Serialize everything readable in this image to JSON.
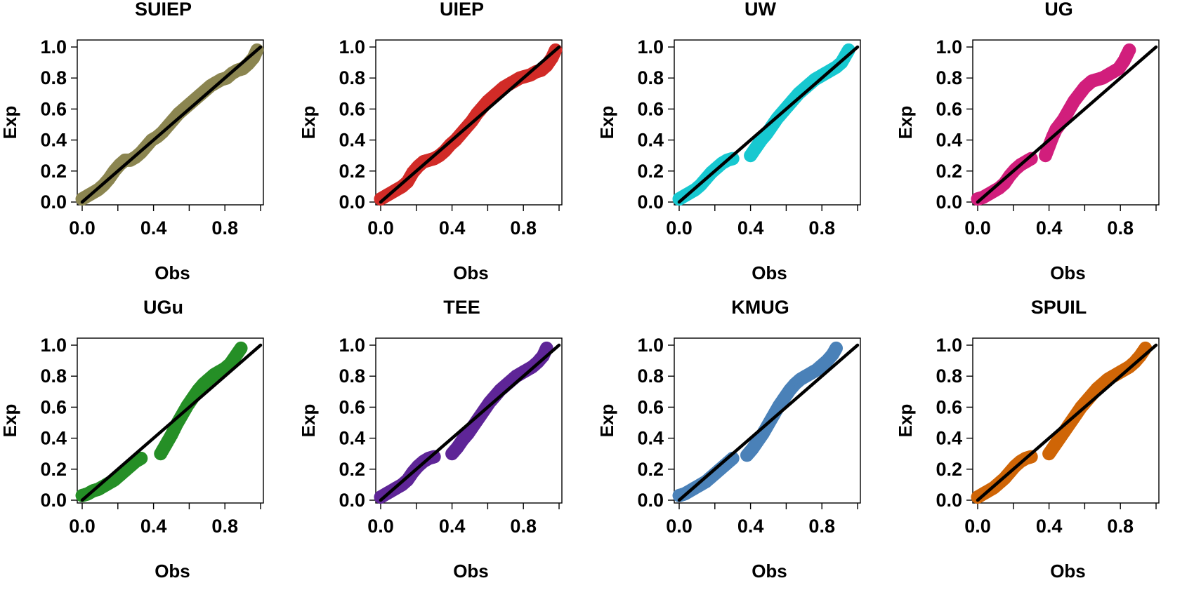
{
  "chart_data": [
    {
      "type": "scatter",
      "title": "SUIEP",
      "xlabel": "Obs",
      "ylabel": "Exp",
      "xlim": [
        0,
        1
      ],
      "ylim": [
        0,
        1
      ],
      "x_ticks": [
        "0.0",
        "0.4",
        "0.8"
      ],
      "y_ticks": [
        "0.0",
        "0.2",
        "0.4",
        "0.6",
        "0.8",
        "1.0"
      ],
      "point_color": "#8B8550",
      "reference_line": {
        "from": [
          0,
          0
        ],
        "to": [
          1,
          1
        ],
        "color": "#000000"
      },
      "x": [
        0.0,
        0.03,
        0.06,
        0.09,
        0.12,
        0.15,
        0.18,
        0.21,
        0.24,
        0.27,
        0.3,
        0.33,
        0.36,
        0.39,
        0.42,
        0.45,
        0.48,
        0.51,
        0.54,
        0.57,
        0.6,
        0.63,
        0.66,
        0.69,
        0.72,
        0.75,
        0.78,
        0.81,
        0.84,
        0.87,
        0.9,
        0.93,
        0.96,
        0.98
      ],
      "y": [
        0.02,
        0.04,
        0.06,
        0.08,
        0.11,
        0.15,
        0.2,
        0.24,
        0.27,
        0.27,
        0.29,
        0.32,
        0.36,
        0.4,
        0.42,
        0.45,
        0.49,
        0.53,
        0.57,
        0.6,
        0.63,
        0.66,
        0.69,
        0.72,
        0.75,
        0.77,
        0.79,
        0.8,
        0.83,
        0.85,
        0.86,
        0.89,
        0.93,
        0.98
      ]
    },
    {
      "type": "scatter",
      "title": "UIEP",
      "xlabel": "Obs",
      "ylabel": "Exp",
      "xlim": [
        0,
        1
      ],
      "ylim": [
        0,
        1
      ],
      "x_ticks": [
        "0.0",
        "0.4",
        "0.8"
      ],
      "y_ticks": [
        "0.0",
        "0.2",
        "0.4",
        "0.6",
        "0.8",
        "1.0"
      ],
      "point_color": "#D12B27",
      "reference_line": {
        "from": [
          0,
          0
        ],
        "to": [
          1,
          1
        ],
        "color": "#000000"
      },
      "x": [
        0.0,
        0.03,
        0.06,
        0.09,
        0.12,
        0.15,
        0.18,
        0.21,
        0.24,
        0.27,
        0.3,
        0.33,
        0.36,
        0.39,
        0.42,
        0.45,
        0.48,
        0.51,
        0.54,
        0.57,
        0.6,
        0.63,
        0.66,
        0.69,
        0.72,
        0.75,
        0.78,
        0.81,
        0.84,
        0.87,
        0.9,
        0.93,
        0.96,
        0.98
      ],
      "y": [
        0.02,
        0.04,
        0.06,
        0.08,
        0.1,
        0.13,
        0.19,
        0.23,
        0.26,
        0.27,
        0.28,
        0.3,
        0.33,
        0.37,
        0.4,
        0.44,
        0.48,
        0.52,
        0.57,
        0.61,
        0.65,
        0.68,
        0.71,
        0.74,
        0.76,
        0.78,
        0.8,
        0.81,
        0.82,
        0.84,
        0.85,
        0.88,
        0.93,
        0.98
      ]
    },
    {
      "type": "scatter",
      "title": "UW",
      "xlabel": "Obs",
      "ylabel": "Exp",
      "xlim": [
        0,
        1
      ],
      "ylim": [
        0,
        1
      ],
      "x_ticks": [
        "0.0",
        "0.4",
        "0.8"
      ],
      "y_ticks": [
        "0.0",
        "0.2",
        "0.4",
        "0.6",
        "0.8",
        "1.0"
      ],
      "point_color": "#17C8D0",
      "reference_line": {
        "from": [
          0,
          0
        ],
        "to": [
          1,
          1
        ],
        "color": "#000000"
      },
      "x": [
        0.0,
        0.03,
        0.06,
        0.09,
        0.12,
        0.15,
        0.18,
        0.21,
        0.24,
        0.27,
        0.3,
        0.4,
        0.43,
        0.46,
        0.49,
        0.52,
        0.55,
        0.58,
        0.61,
        0.64,
        0.67,
        0.7,
        0.73,
        0.76,
        0.79,
        0.82,
        0.85,
        0.88,
        0.91,
        0.93,
        0.95
      ],
      "y": [
        0.02,
        0.04,
        0.06,
        0.08,
        0.11,
        0.15,
        0.19,
        0.22,
        0.25,
        0.27,
        0.28,
        0.3,
        0.35,
        0.4,
        0.44,
        0.49,
        0.54,
        0.58,
        0.62,
        0.66,
        0.7,
        0.73,
        0.76,
        0.79,
        0.81,
        0.83,
        0.85,
        0.87,
        0.9,
        0.94,
        0.98
      ]
    },
    {
      "type": "scatter",
      "title": "UG",
      "xlabel": "Obs",
      "ylabel": "Exp",
      "xlim": [
        0,
        1
      ],
      "ylim": [
        0,
        1
      ],
      "x_ticks": [
        "0.0",
        "0.4",
        "0.8"
      ],
      "y_ticks": [
        "0.0",
        "0.2",
        "0.4",
        "0.6",
        "0.8",
        "1.0"
      ],
      "point_color": "#D11E7C",
      "reference_line": {
        "from": [
          0,
          0
        ],
        "to": [
          1,
          1
        ],
        "color": "#000000"
      },
      "x": [
        0.0,
        0.03,
        0.06,
        0.09,
        0.12,
        0.15,
        0.18,
        0.21,
        0.24,
        0.27,
        0.3,
        0.38,
        0.4,
        0.42,
        0.44,
        0.46,
        0.48,
        0.5,
        0.52,
        0.54,
        0.56,
        0.58,
        0.6,
        0.62,
        0.64,
        0.67,
        0.7,
        0.73,
        0.76,
        0.79,
        0.82,
        0.85
      ],
      "y": [
        0.02,
        0.03,
        0.05,
        0.07,
        0.09,
        0.12,
        0.17,
        0.21,
        0.24,
        0.26,
        0.28,
        0.3,
        0.36,
        0.42,
        0.47,
        0.5,
        0.53,
        0.57,
        0.61,
        0.65,
        0.68,
        0.71,
        0.74,
        0.76,
        0.78,
        0.79,
        0.8,
        0.82,
        0.84,
        0.86,
        0.91,
        0.98
      ]
    },
    {
      "type": "scatter",
      "title": "UGu",
      "xlabel": "Obs",
      "ylabel": "Exp",
      "xlim": [
        0,
        1
      ],
      "ylim": [
        0,
        1
      ],
      "x_ticks": [
        "0.0",
        "0.4",
        "0.8"
      ],
      "y_ticks": [
        "0.0",
        "0.2",
        "0.4",
        "0.6",
        "0.8",
        "1.0"
      ],
      "point_color": "#258F26",
      "reference_line": {
        "from": [
          0,
          0
        ],
        "to": [
          1,
          1
        ],
        "color": "#000000"
      },
      "x": [
        0.0,
        0.03,
        0.06,
        0.09,
        0.12,
        0.15,
        0.18,
        0.21,
        0.24,
        0.27,
        0.3,
        0.33,
        0.44,
        0.47,
        0.5,
        0.53,
        0.56,
        0.59,
        0.62,
        0.65,
        0.68,
        0.71,
        0.74,
        0.77,
        0.8,
        0.83,
        0.86,
        0.89
      ],
      "y": [
        0.03,
        0.04,
        0.06,
        0.07,
        0.09,
        0.11,
        0.13,
        0.16,
        0.19,
        0.22,
        0.25,
        0.27,
        0.3,
        0.36,
        0.42,
        0.49,
        0.55,
        0.61,
        0.66,
        0.71,
        0.75,
        0.78,
        0.81,
        0.83,
        0.85,
        0.88,
        0.93,
        0.98
      ]
    },
    {
      "type": "scatter",
      "title": "TEE",
      "xlabel": "Obs",
      "ylabel": "Exp",
      "xlim": [
        0,
        1
      ],
      "ylim": [
        0,
        1
      ],
      "x_ticks": [
        "0.0",
        "0.4",
        "0.8"
      ],
      "y_ticks": [
        "0.0",
        "0.2",
        "0.4",
        "0.6",
        "0.8",
        "1.0"
      ],
      "point_color": "#5E2597",
      "reference_line": {
        "from": [
          0,
          0
        ],
        "to": [
          1,
          1
        ],
        "color": "#000000"
      },
      "x": [
        0.0,
        0.03,
        0.06,
        0.09,
        0.12,
        0.15,
        0.18,
        0.21,
        0.24,
        0.27,
        0.3,
        0.4,
        0.43,
        0.46,
        0.49,
        0.52,
        0.55,
        0.58,
        0.61,
        0.64,
        0.67,
        0.7,
        0.73,
        0.76,
        0.79,
        0.82,
        0.85,
        0.88,
        0.91,
        0.93
      ],
      "y": [
        0.02,
        0.04,
        0.06,
        0.08,
        0.1,
        0.13,
        0.18,
        0.22,
        0.25,
        0.27,
        0.28,
        0.3,
        0.34,
        0.39,
        0.43,
        0.48,
        0.53,
        0.58,
        0.63,
        0.67,
        0.71,
        0.74,
        0.77,
        0.8,
        0.82,
        0.84,
        0.86,
        0.89,
        0.93,
        0.98
      ]
    },
    {
      "type": "scatter",
      "title": "KMUG",
      "xlabel": "Obs",
      "ylabel": "Exp",
      "xlim": [
        0,
        1
      ],
      "ylim": [
        0,
        1
      ],
      "x_ticks": [
        "0.0",
        "0.4",
        "0.8"
      ],
      "y_ticks": [
        "0.0",
        "0.2",
        "0.4",
        "0.6",
        "0.8",
        "1.0"
      ],
      "point_color": "#4A81B8",
      "reference_line": {
        "from": [
          0,
          0
        ],
        "to": [
          1,
          1
        ],
        "color": "#000000"
      },
      "x": [
        0.0,
        0.03,
        0.06,
        0.09,
        0.12,
        0.15,
        0.18,
        0.21,
        0.24,
        0.27,
        0.3,
        0.38,
        0.41,
        0.44,
        0.47,
        0.5,
        0.53,
        0.56,
        0.59,
        0.62,
        0.65,
        0.68,
        0.71,
        0.74,
        0.77,
        0.8,
        0.83,
        0.86,
        0.88
      ],
      "y": [
        0.03,
        0.04,
        0.06,
        0.08,
        0.1,
        0.12,
        0.15,
        0.18,
        0.21,
        0.24,
        0.27,
        0.29,
        0.33,
        0.38,
        0.43,
        0.49,
        0.55,
        0.61,
        0.66,
        0.71,
        0.75,
        0.78,
        0.8,
        0.82,
        0.84,
        0.87,
        0.9,
        0.94,
        0.98
      ]
    },
    {
      "type": "scatter",
      "title": "SPUIL",
      "xlabel": "Obs",
      "ylabel": "Exp",
      "xlim": [
        0,
        1
      ],
      "ylim": [
        0,
        1
      ],
      "x_ticks": [
        "0.0",
        "0.4",
        "0.8"
      ],
      "y_ticks": [
        "0.0",
        "0.2",
        "0.4",
        "0.6",
        "0.8",
        "1.0"
      ],
      "point_color": "#CF6506",
      "reference_line": {
        "from": [
          0,
          0
        ],
        "to": [
          1,
          1
        ],
        "color": "#000000"
      },
      "x": [
        0.0,
        0.03,
        0.06,
        0.09,
        0.12,
        0.15,
        0.18,
        0.21,
        0.24,
        0.27,
        0.3,
        0.4,
        0.43,
        0.46,
        0.49,
        0.52,
        0.55,
        0.58,
        0.61,
        0.64,
        0.67,
        0.7,
        0.73,
        0.76,
        0.79,
        0.82,
        0.85,
        0.88,
        0.91,
        0.94
      ],
      "y": [
        0.02,
        0.04,
        0.06,
        0.08,
        0.11,
        0.14,
        0.18,
        0.22,
        0.25,
        0.27,
        0.28,
        0.3,
        0.35,
        0.4,
        0.45,
        0.5,
        0.55,
        0.6,
        0.64,
        0.68,
        0.72,
        0.75,
        0.78,
        0.8,
        0.82,
        0.84,
        0.86,
        0.89,
        0.93,
        0.98
      ]
    }
  ]
}
